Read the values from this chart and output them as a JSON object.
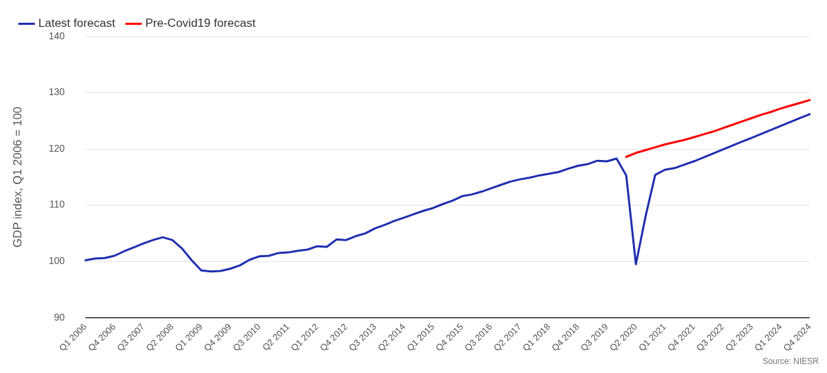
{
  "chart_data": {
    "type": "line",
    "ylabel": "GDP index, Q1 2006 = 100",
    "categories": [
      "Q1 2006",
      null,
      null,
      "Q4 2006",
      null,
      null,
      "Q3 2007",
      null,
      null,
      "Q2 2008",
      null,
      null,
      "Q1 2009",
      null,
      null,
      "Q4 2009",
      null,
      null,
      "Q3 2010",
      null,
      null,
      "Q2 2011",
      null,
      null,
      "Q1 2012",
      null,
      null,
      "Q4 2012",
      null,
      null,
      "Q3 2013",
      null,
      null,
      "Q2 2014",
      null,
      null,
      "Q1 2015",
      null,
      null,
      "Q4 2015",
      null,
      null,
      "Q3 2016",
      null,
      null,
      "Q2 2017",
      null,
      null,
      "Q1 2018",
      null,
      null,
      "Q4 2018",
      null,
      null,
      "Q3 2019",
      null,
      null,
      "Q2 2020",
      null,
      null,
      "Q1 2021",
      null,
      null,
      "Q4 2021",
      null,
      null,
      "Q3 2022",
      null,
      null,
      "Q2 2023",
      null,
      null,
      "Q1 2024",
      null,
      null,
      "Q4 2024"
    ],
    "series": [
      {
        "name": "Latest forecast",
        "color": "#1f2eb0",
        "values": [
          100.2,
          100.5,
          100.6,
          101.0,
          101.8,
          102.5,
          103.2,
          103.8,
          104.3,
          103.8,
          102.3,
          100.2,
          98.4,
          98.2,
          98.3,
          98.7,
          99.3,
          100.3,
          100.9,
          101.0,
          101.5,
          101.6,
          101.9,
          102.1,
          102.7,
          102.6,
          103.9,
          103.8,
          104.5,
          105.0,
          105.9,
          106.5,
          107.2,
          107.8,
          108.4,
          109.0,
          109.5,
          110.2,
          110.8,
          111.6,
          111.9,
          112.4,
          113.0,
          113.6,
          114.2,
          114.6,
          114.9,
          115.3,
          115.6,
          115.9,
          116.5,
          117.0,
          117.3,
          117.9,
          117.8,
          118.3,
          115.3,
          99.5,
          108.0,
          115.4,
          116.3,
          116.6,
          117.2,
          117.8,
          118.5,
          119.2,
          119.9,
          120.6,
          121.3,
          122.0,
          122.7,
          123.4,
          124.1,
          124.8,
          125.5,
          126.2
        ]
      },
      {
        "name": "Pre-Covid19 forecast",
        "color": "#ff0000",
        "values": [
          null,
          null,
          null,
          null,
          null,
          null,
          null,
          null,
          null,
          null,
          null,
          null,
          null,
          null,
          null,
          null,
          null,
          null,
          null,
          null,
          null,
          null,
          null,
          null,
          null,
          null,
          null,
          null,
          null,
          null,
          null,
          null,
          null,
          null,
          null,
          null,
          null,
          null,
          null,
          null,
          null,
          null,
          null,
          null,
          null,
          null,
          null,
          null,
          null,
          null,
          null,
          null,
          null,
          null,
          null,
          null,
          118.6,
          119.3,
          119.8,
          120.3,
          120.8,
          121.2,
          121.6,
          122.1,
          122.6,
          123.1,
          123.7,
          124.3,
          124.9,
          125.5,
          126.1,
          126.6,
          127.2,
          127.7,
          128.2,
          128.7
        ]
      }
    ],
    "ylim": [
      90,
      140
    ],
    "yticks": [
      90,
      100,
      110,
      120,
      130,
      140
    ],
    "grid": "y",
    "legend": "top left",
    "marker": "none",
    "line_style": "solid",
    "annotations": [
      "Source: NIESR"
    ]
  }
}
